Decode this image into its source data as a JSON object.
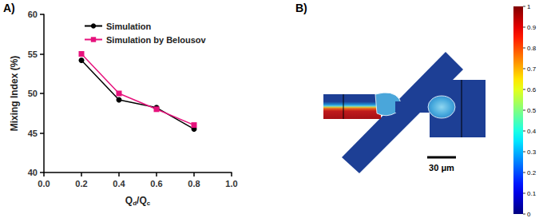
{
  "chart_data": {
    "type": "line",
    "xlabel": "Qd/Qc",
    "ylabel": "Mixing Index (%)",
    "x": [
      0.2,
      0.4,
      0.6,
      0.8
    ],
    "series": [
      {
        "name": "Simulation",
        "color": "#000000",
        "marker": "circle",
        "values": [
          54.2,
          49.2,
          48.2,
          45.5
        ]
      },
      {
        "name": "Simulation by Belousov",
        "color": "#e6127c",
        "marker": "square",
        "values": [
          55,
          50,
          48,
          46
        ]
      }
    ],
    "xlim": [
      0,
      1
    ],
    "xticks": [
      {
        "value": 0,
        "label": "0.0"
      },
      0.2,
      0.4,
      0.6,
      0.8,
      {
        "value": 1,
        "label": "1.0"
      }
    ],
    "ylim": [
      40,
      60
    ],
    "yticks": [
      40,
      45,
      50,
      55,
      60
    ],
    "grid": false,
    "legend": "upper left"
  },
  "panel_labels": [
    "A)",
    "B)"
  ],
  "image": {
    "scale_bar": "30 μm",
    "colorbar": {
      "range": [
        0,
        1
      ],
      "ticks": [
        0,
        0.1,
        0.2,
        0.3,
        0.4,
        0.5,
        0.6,
        0.7,
        0.8,
        0.9,
        1
      ]
    }
  }
}
